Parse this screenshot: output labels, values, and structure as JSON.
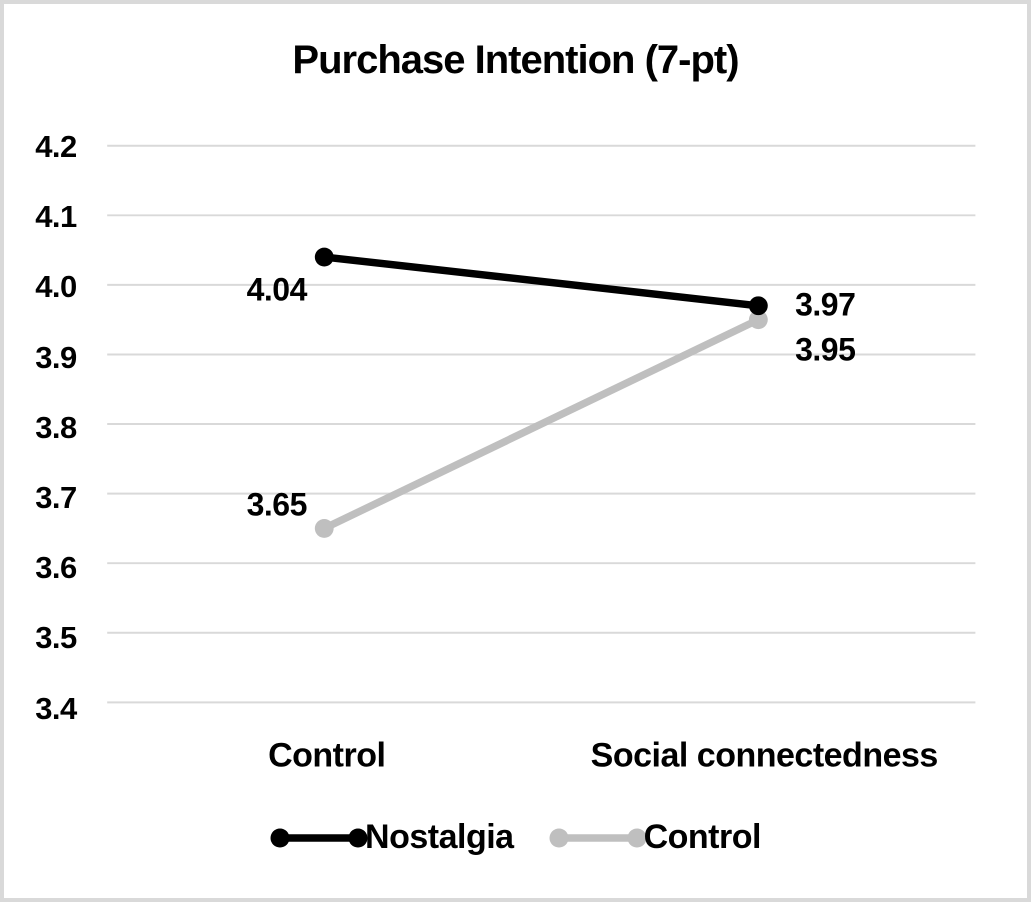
{
  "window": {
    "background": "#ffffff",
    "frame_border_color": "#d9d9d9"
  },
  "chart_data": {
    "type": "line",
    "title": "Purchase Intention (7-pt)",
    "categories": [
      "Control",
      "Social connectedness"
    ],
    "series": [
      {
        "name": "Nostalgia",
        "color": "#000000",
        "values": [
          4.04,
          3.97
        ],
        "point_labels": [
          "4.04",
          "3.97"
        ]
      },
      {
        "name": "Control",
        "color": "#bfbfbf",
        "values": [
          3.65,
          3.95
        ],
        "point_labels": [
          "3.65",
          "3.95"
        ]
      }
    ],
    "xlabel": "",
    "ylabel": "",
    "ylim": [
      3.4,
      4.2
    ],
    "ytick_step": 0.1,
    "yticks": [
      "4.2",
      "4.1",
      "4.0",
      "3.9",
      "3.8",
      "3.7",
      "3.6",
      "3.5",
      "3.4"
    ],
    "grid": true,
    "gridline_color": "#d9d9d9",
    "marker": "circle",
    "legend_position": "bottom",
    "label_offsets": [
      [
        [
          -50,
          31
        ],
        [
          61,
          -3
        ]
      ],
      [
        [
          -50,
          -28
        ],
        [
          61,
          27
        ]
      ]
    ]
  }
}
